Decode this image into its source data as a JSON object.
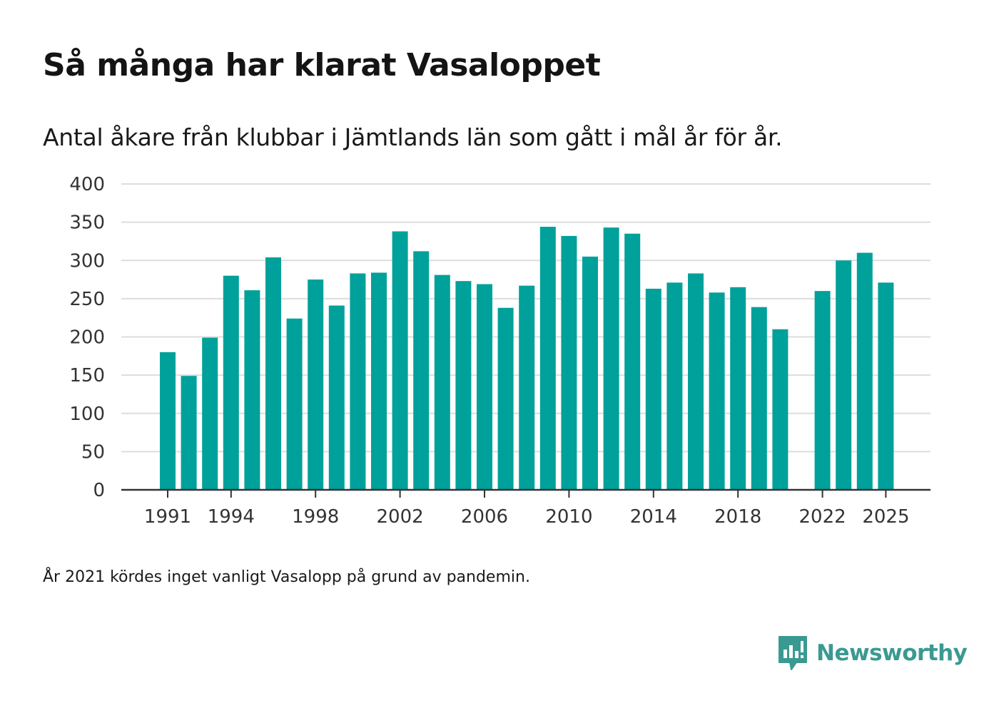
{
  "header": {
    "title": "Så många har klarat Vasaloppet",
    "subtitle": "Antal åkare från klubbar i Jämtlands län som gått i mål år för år."
  },
  "footer": {
    "note": "År 2021 kördes inget vanligt Vasalopp på grund av pandemin.",
    "brand": "Newsworthy",
    "brand_icon": "newsworthy-logo-icon"
  },
  "colors": {
    "bar": "#00A19A",
    "grid": "#dddddd",
    "axis": "#333333",
    "brand": "#3a9a91"
  },
  "chart_data": {
    "type": "bar",
    "title": "Så många har klarat Vasaloppet",
    "subtitle": "Antal åkare från klubbar i Jämtlands län som gått i mål år för år.",
    "xlabel": "",
    "ylabel": "",
    "ylim": [
      0,
      400
    ],
    "yticks": [
      0,
      50,
      100,
      150,
      200,
      250,
      300,
      350,
      400
    ],
    "xticks": [
      "1991",
      "1994",
      "1998",
      "2002",
      "2006",
      "2010",
      "2014",
      "2018",
      "2022",
      "2025"
    ],
    "grid": true,
    "categories": [
      1991,
      1992,
      1993,
      1994,
      1995,
      1996,
      1997,
      1998,
      1999,
      2000,
      2001,
      2002,
      2003,
      2004,
      2005,
      2006,
      2007,
      2008,
      2009,
      2010,
      2011,
      2012,
      2013,
      2014,
      2015,
      2016,
      2017,
      2018,
      2019,
      2020,
      2021,
      2022,
      2023,
      2024,
      2025
    ],
    "values": [
      180,
      149,
      199,
      280,
      261,
      304,
      224,
      275,
      241,
      283,
      284,
      338,
      312,
      281,
      273,
      269,
      238,
      267,
      344,
      332,
      305,
      343,
      335,
      263,
      271,
      283,
      258,
      265,
      239,
      210,
      null,
      260,
      300,
      310,
      271
    ]
  }
}
